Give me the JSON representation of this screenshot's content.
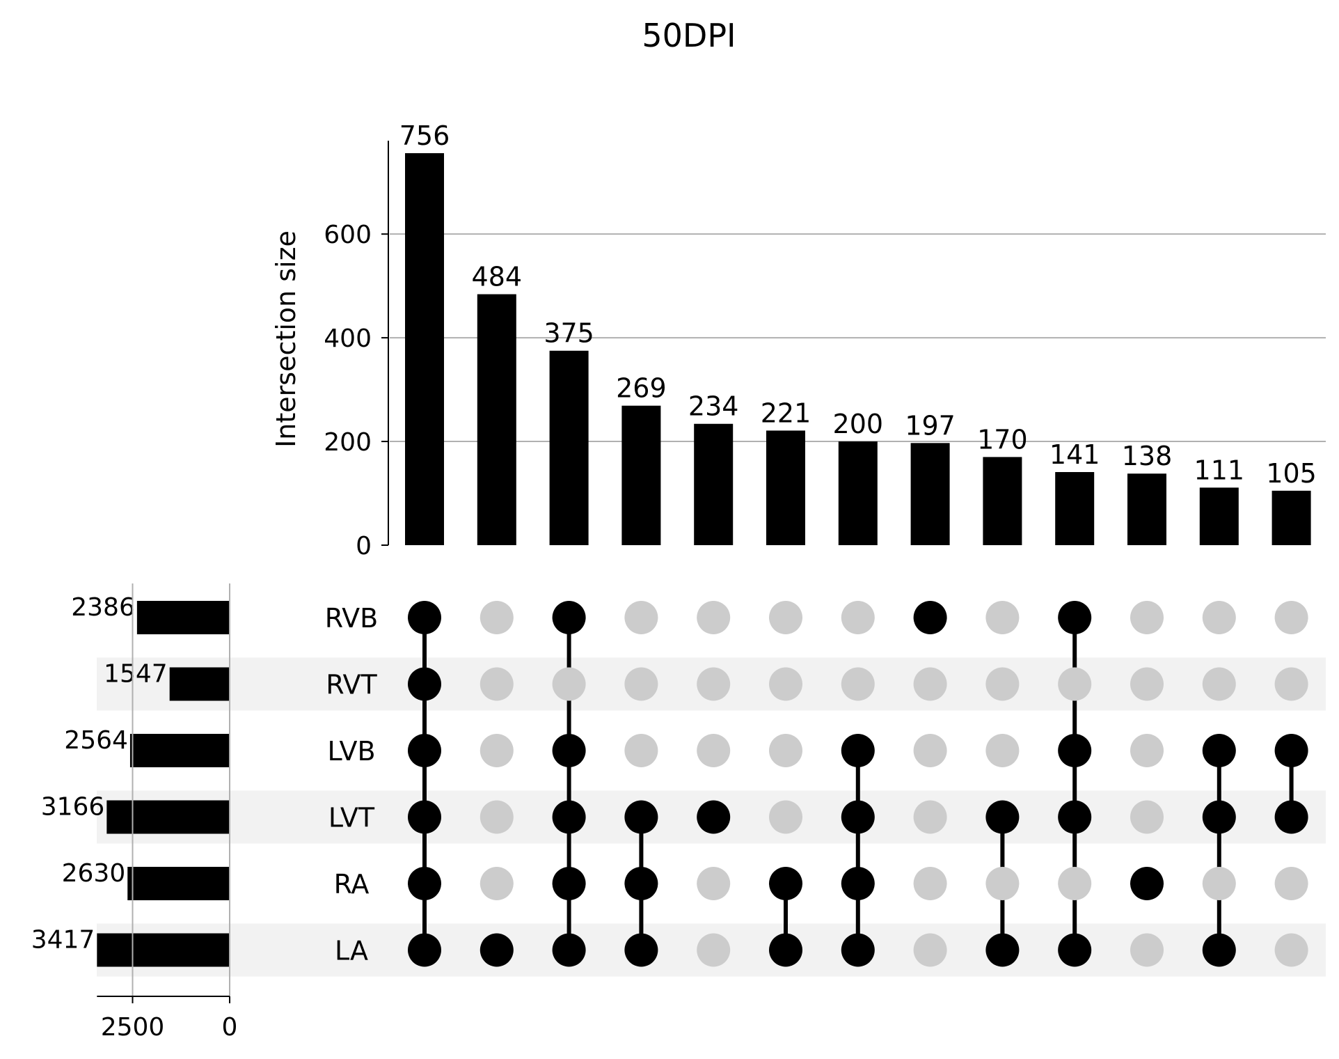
{
  "chart_data": {
    "type": "upset",
    "title": "50DPI",
    "ylabel": "Intersection size",
    "sets": [
      "RVB",
      "RVT",
      "LVB",
      "LVT",
      "RA",
      "LA"
    ],
    "set_sizes": [
      2386,
      1547,
      2564,
      3166,
      2630,
      3417
    ],
    "set_size_axis": {
      "ticks": [
        2500,
        0
      ],
      "max": 3417
    },
    "intersection_axis": {
      "ylim": [
        0,
        780
      ],
      "ticks": [
        0,
        200,
        400,
        600
      ],
      "grid": true
    },
    "intersections": [
      {
        "value": 756,
        "members": [
          "RVB",
          "RVT",
          "LVB",
          "LVT",
          "RA",
          "LA"
        ]
      },
      {
        "value": 484,
        "members": [
          "LA"
        ]
      },
      {
        "value": 375,
        "members": [
          "RVB",
          "LVB",
          "LVT",
          "RA",
          "LA"
        ]
      },
      {
        "value": 269,
        "members": [
          "LVT",
          "RA",
          "LA"
        ]
      },
      {
        "value": 234,
        "members": [
          "LVT"
        ]
      },
      {
        "value": 221,
        "members": [
          "RA",
          "LA"
        ]
      },
      {
        "value": 200,
        "members": [
          "LVB",
          "LVT",
          "RA",
          "LA"
        ]
      },
      {
        "value": 197,
        "members": [
          "RVB"
        ]
      },
      {
        "value": 170,
        "members": [
          "LVT",
          "LA"
        ]
      },
      {
        "value": 141,
        "members": [
          "RVB",
          "LVB",
          "LVT",
          "LA"
        ]
      },
      {
        "value": 138,
        "members": [
          "RA"
        ]
      },
      {
        "value": 111,
        "members": [
          "LVB",
          "LVT",
          "LA"
        ]
      },
      {
        "value": 105,
        "members": [
          "LVB",
          "LVT"
        ]
      }
    ],
    "colors": {
      "active": "#000000",
      "inactive": "#cccccc",
      "stripe": "#f2f2f2",
      "grid": "#b0b0b0"
    }
  }
}
